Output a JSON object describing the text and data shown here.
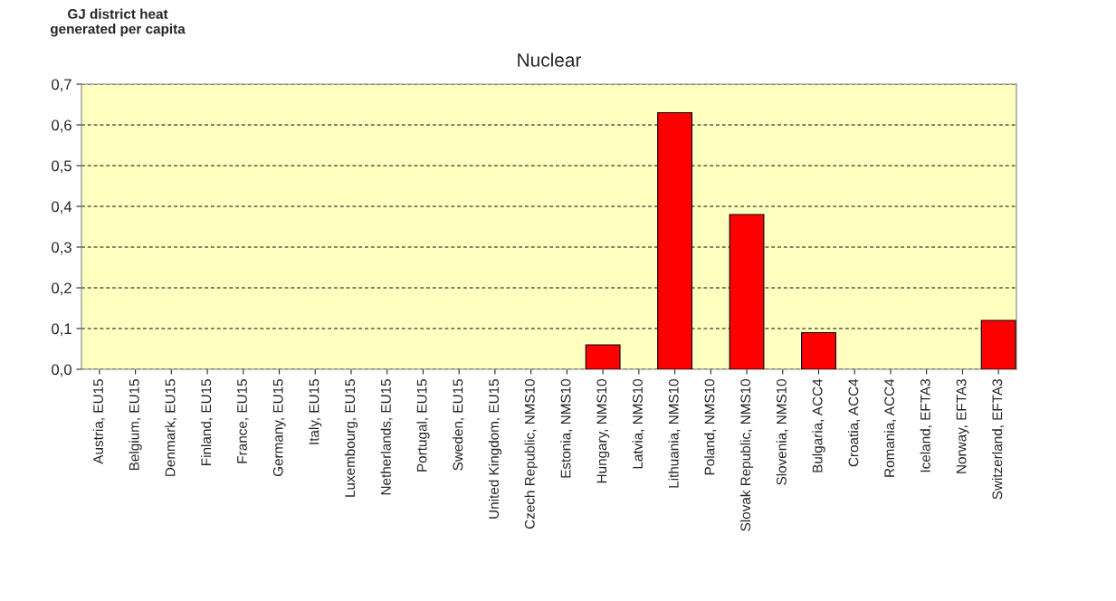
{
  "chart_data": {
    "type": "bar",
    "title": "Nuclear",
    "ylabel": "GJ district heat\ngenerated per capita",
    "categories": [
      "Austria, EU15",
      "Belgium, EU15",
      "Denmark, EU15",
      "Finland, EU15",
      "France, EU15",
      "Germany, EU15",
      "Italy, EU15",
      "Luxembourg, EU15",
      "Netherlands, EU15",
      "Portugal, EU15",
      "Sweden, EU15",
      "United Kingdom, EU15",
      "Czech Republic, NMS10",
      "Estonia, NMS10",
      "Hungary, NMS10",
      "Latvia, NMS10",
      "Lithuania, NMS10",
      "Poland, NMS10",
      "Slovak Republic, NMS10",
      "Slovenia, NMS10",
      "Bulgaria, ACC4",
      "Croatia, ACC4",
      "Romania, ACC4",
      "Iceland, EFTA3",
      "Norway, EFTA3",
      "Switzerland, EFTA3"
    ],
    "values": [
      0,
      0,
      0,
      0,
      0,
      0,
      0,
      0,
      0,
      0,
      0,
      0,
      0,
      0,
      0.06,
      0,
      0.63,
      0,
      0.38,
      0,
      0.09,
      0,
      0,
      0,
      0,
      0.12
    ],
    "color": "#ff0000",
    "ylim": [
      0,
      0.7
    ],
    "yticks": [
      {
        "value": 0,
        "label": "0,0"
      },
      {
        "value": 0.1,
        "label": "0,1"
      },
      {
        "value": 0.2,
        "label": "0,2"
      },
      {
        "value": 0.3,
        "label": "0,3"
      },
      {
        "value": 0.4,
        "label": "0,4"
      },
      {
        "value": 0.5,
        "label": "0,5"
      },
      {
        "value": 0.6,
        "label": "0,6"
      },
      {
        "value": 0.7,
        "label": "0,7"
      }
    ],
    "grid": "y"
  }
}
